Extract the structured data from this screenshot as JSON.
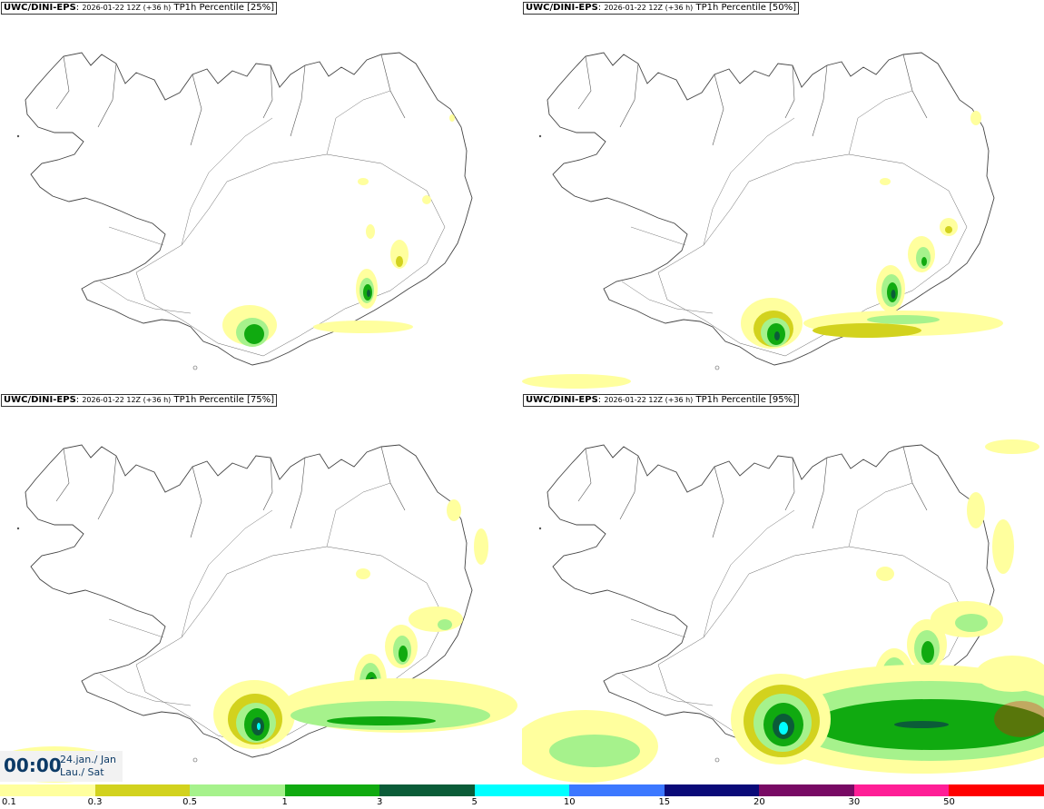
{
  "panels": [
    {
      "source": "UWC/DINI-EPS",
      "run": "2026-01-22 12Z (+36 h)",
      "field": "TP1h Percentile [25%]"
    },
    {
      "source": "UWC/DINI-EPS",
      "run": "2026-01-22 12Z (+36 h)",
      "field": "TP1h Percentile [50%]"
    },
    {
      "source": "UWC/DINI-EPS",
      "run": "2026-01-22 12Z (+36 h)",
      "field": "TP1h Percentile [75%]"
    },
    {
      "source": "UWC/DINI-EPS",
      "run": "2026-01-22 12Z (+36 h)",
      "field": "TP1h Percentile [95%]"
    }
  ],
  "valid_time": {
    "time": "00:00",
    "date_line1": "24.jan./ Jan",
    "date_line2": "Lau./ Sat"
  },
  "legend": {
    "levels": [
      "0.1",
      "0.3",
      "0.5",
      "1",
      "3",
      "5",
      "10",
      "15",
      "20",
      "30",
      "50"
    ],
    "colors": [
      "#ffff9e",
      "#d2d21e",
      "#a6f28c",
      "#10aa10",
      "#0b5c38",
      "#00ffff",
      "#3c78ff",
      "#0a0a78",
      "#780a64",
      "#ff1e96",
      "#ff0000"
    ]
  },
  "colors": {
    "c1": "#ffff9e",
    "c2": "#d2d21e",
    "c3": "#a6f28c",
    "c4": "#10aa10",
    "c5": "#0b5c38",
    "c6": "#00ffff"
  }
}
